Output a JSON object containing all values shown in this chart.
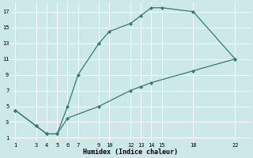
{
  "line1_x": [
    1,
    3,
    4,
    5,
    6,
    7,
    9,
    10,
    12,
    13,
    14,
    15,
    18,
    22
  ],
  "line1_y": [
    4.5,
    2.5,
    1.5,
    1.5,
    5.0,
    9.0,
    13.0,
    14.5,
    15.5,
    16.5,
    17.5,
    17.5,
    17.0,
    11.0
  ],
  "line2_x": [
    1,
    3,
    4,
    5,
    6,
    9,
    12,
    13,
    14,
    18,
    22
  ],
  "line2_y": [
    4.5,
    2.5,
    1.5,
    1.5,
    3.5,
    5.0,
    7.0,
    7.5,
    8.0,
    9.5,
    11.0
  ],
  "line_color": "#2e7d6e",
  "bg_color": "#cde8e8",
  "grid_color": "#b8d8d8",
  "xlabel": "Humidex (Indice chaleur)",
  "xticks": [
    1,
    3,
    4,
    5,
    6,
    7,
    9,
    10,
    12,
    13,
    14,
    15,
    18,
    22
  ],
  "xtick_labels": [
    "1",
    "3",
    "4",
    "5",
    "6",
    "7",
    "9",
    "10",
    "12",
    "13",
    "14",
    "15",
    "18",
    "22"
  ],
  "yticks": [
    1,
    3,
    5,
    7,
    9,
    11,
    13,
    15,
    17
  ],
  "ytick_labels": [
    "1",
    "3",
    "5",
    "7",
    "9",
    "11",
    "13",
    "15",
    "17"
  ],
  "xlim": [
    0.5,
    23.5
  ],
  "ylim": [
    0.5,
    18.2
  ]
}
